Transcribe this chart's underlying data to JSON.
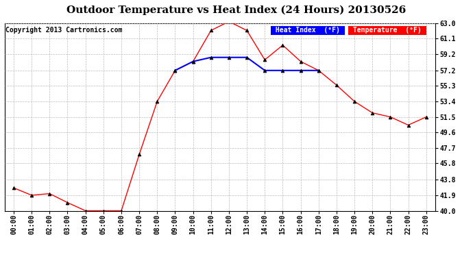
{
  "title": "Outdoor Temperature vs Heat Index (24 Hours) 20130526",
  "copyright": "Copyright 2013 Cartronics.com",
  "background_color": "#ffffff",
  "plot_bg_color": "#ffffff",
  "grid_color": "#bbbbbb",
  "x_labels": [
    "00:00",
    "01:00",
    "02:00",
    "03:00",
    "04:00",
    "05:00",
    "06:00",
    "07:00",
    "08:00",
    "09:00",
    "10:00",
    "11:00",
    "12:00",
    "13:00",
    "14:00",
    "15:00",
    "16:00",
    "17:00",
    "18:00",
    "19:00",
    "20:00",
    "21:00",
    "22:00",
    "23:00"
  ],
  "temperature_data": [
    42.8,
    41.9,
    42.1,
    41.0,
    40.0,
    40.0,
    40.0,
    46.9,
    53.4,
    57.2,
    58.3,
    62.1,
    63.2,
    62.1,
    58.5,
    60.3,
    58.3,
    57.2,
    55.4,
    53.4,
    52.0,
    51.5,
    50.5,
    51.5
  ],
  "heat_index_data": [
    null,
    null,
    null,
    null,
    null,
    null,
    null,
    null,
    null,
    57.2,
    58.3,
    58.8,
    58.8,
    58.8,
    57.2,
    57.2,
    57.2,
    57.2,
    null,
    null,
    null,
    null,
    null,
    null
  ],
  "ylim": [
    40.0,
    63.0
  ],
  "yticks": [
    40.0,
    41.9,
    43.8,
    45.8,
    47.7,
    49.6,
    51.5,
    53.4,
    55.3,
    57.2,
    59.2,
    61.1,
    63.0
  ],
  "temp_color": "#ff0000",
  "heat_color": "#0000ff",
  "legend_heat_bg": "#0000ff",
  "legend_temp_bg": "#ff0000",
  "legend_text_color": "#ffffff",
  "title_fontsize": 11,
  "axis_fontsize": 7,
  "copyright_fontsize": 7
}
